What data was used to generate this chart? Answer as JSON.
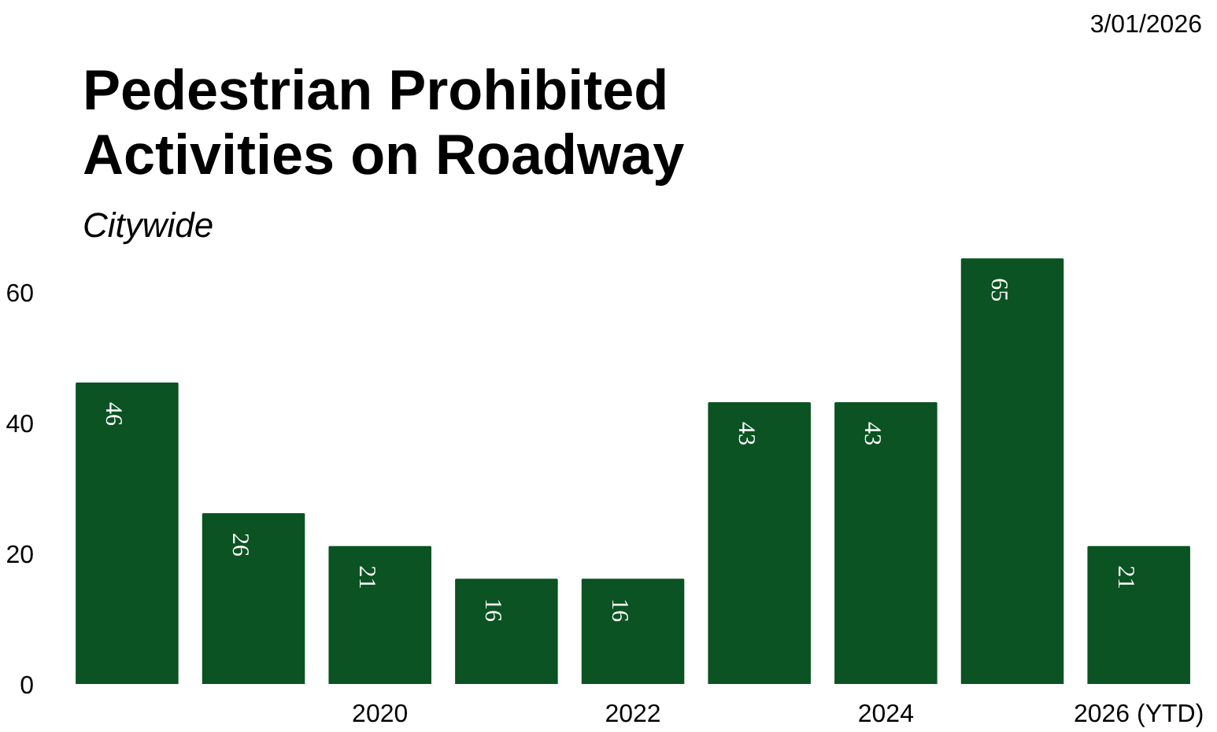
{
  "chart_data": {
    "type": "bar",
    "title": "Pedestrian Prohibited\nActivities on Roadway",
    "subtitle": "Citywide",
    "annotations": [
      "3/01/2026"
    ],
    "categories": [
      null,
      null,
      "2020",
      null,
      "2022",
      null,
      "2024",
      null,
      "2026 (YTD)"
    ],
    "values": [
      46,
      26,
      21,
      16,
      16,
      43,
      43,
      65,
      21
    ],
    "color": "#0b5322",
    "data_labels": true,
    "ylim": [
      0,
      66
    ],
    "yticks": [
      0,
      20,
      40,
      60
    ],
    "grid": false
  }
}
